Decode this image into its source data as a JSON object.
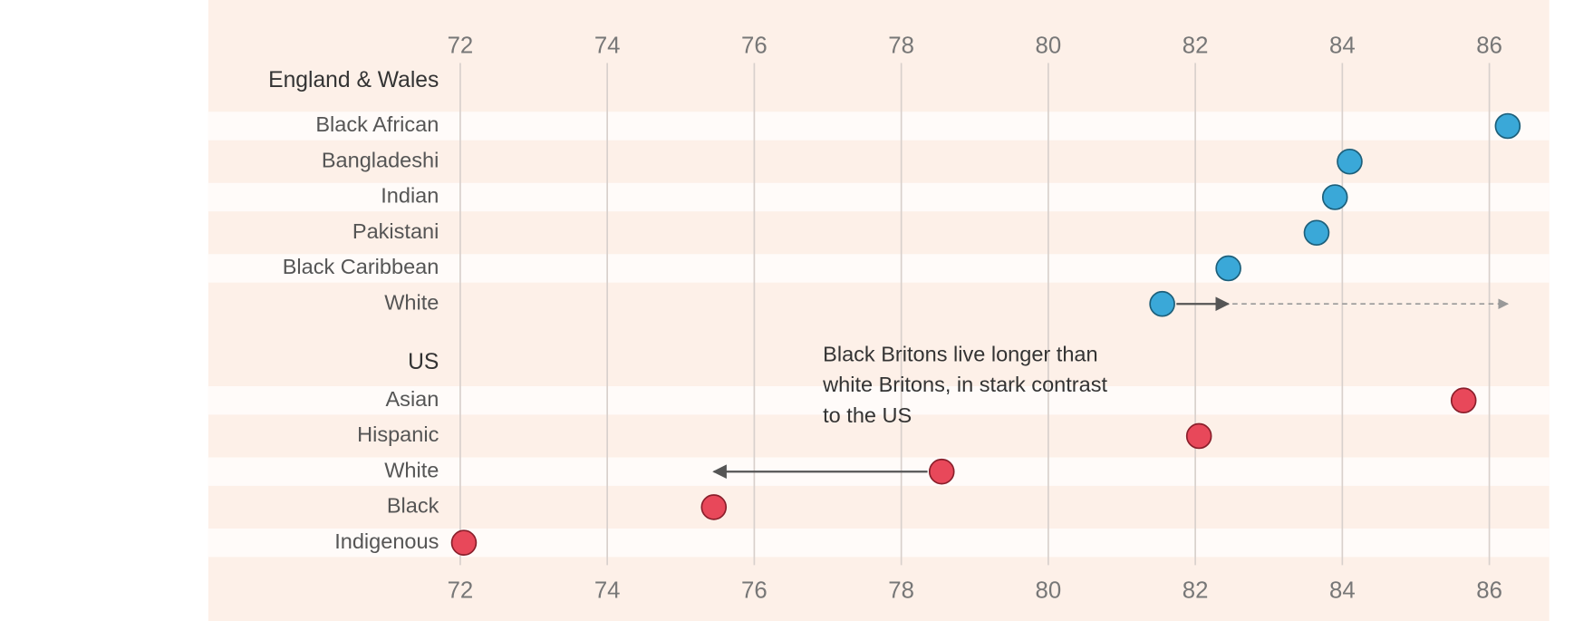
{
  "chart_data": {
    "type": "dot",
    "xlim": [
      72,
      86
    ],
    "xticks": [
      72,
      74,
      76,
      78,
      80,
      82,
      84,
      86
    ],
    "grid": true,
    "groups": [
      {
        "name": "England & Wales",
        "color": "#3aa8d8",
        "categories": [
          "Black African",
          "Bangladeshi",
          "Indian",
          "Pakistani",
          "Black Caribbean",
          "White"
        ],
        "values": [
          86.25,
          84.1,
          83.9,
          83.65,
          82.45,
          81.55
        ]
      },
      {
        "name": "US",
        "color": "#e8485a",
        "categories": [
          "Asian",
          "Hispanic",
          "White",
          "Black",
          "Indigenous"
        ],
        "values": [
          85.65,
          82.05,
          78.55,
          75.45,
          72.05
        ]
      }
    ],
    "annotation": [
      "Black Britons live longer than",
      "white Britons, in stark contrast",
      "to the US"
    ]
  }
}
